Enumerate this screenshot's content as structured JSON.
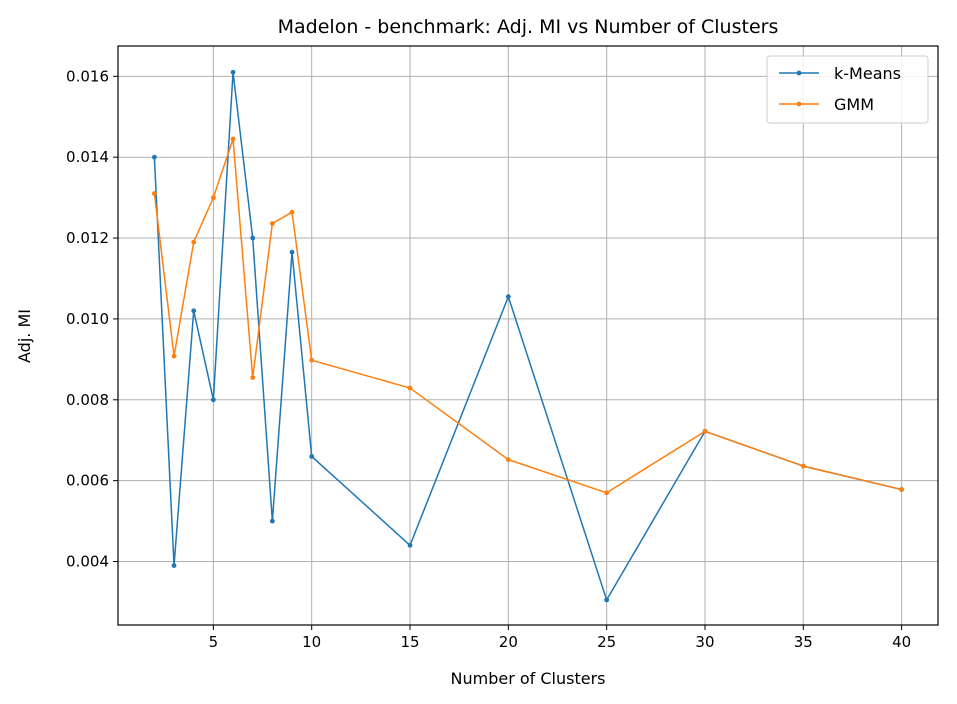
{
  "chart_data": {
    "type": "line",
    "title": "Madelon - benchmark: Adj. MI vs Number of Clusters",
    "xlabel": "Number of Clusters",
    "ylabel": "Adj. MI",
    "x": [
      2,
      3,
      4,
      5,
      6,
      7,
      8,
      9,
      10,
      15,
      20,
      25,
      30,
      35,
      40
    ],
    "xlim": [
      0.15,
      41.85
    ],
    "ylim": [
      0.00243,
      0.01675
    ],
    "xticks": [
      5,
      10,
      15,
      20,
      25,
      30,
      35,
      40
    ],
    "yticks": [
      0.004,
      0.006,
      0.008,
      0.01,
      0.012,
      0.014,
      0.016
    ],
    "ytick_labels": [
      "0.004",
      "0.006",
      "0.008",
      "0.010",
      "0.012",
      "0.014",
      "0.016"
    ],
    "grid": true,
    "legend_position": "top-right",
    "series": [
      {
        "name": "k-Means",
        "color": "#1f77b4",
        "values": [
          0.014,
          0.0039,
          0.0102,
          0.008,
          0.0161,
          0.012,
          0.005,
          0.01165,
          0.0066,
          0.0044,
          0.01055,
          0.00305,
          0.00722,
          0.00636,
          0.00578
        ]
      },
      {
        "name": "GMM",
        "color": "#ff7f0e",
        "values": [
          0.0131,
          0.00908,
          0.0119,
          0.013,
          0.01445,
          0.00855,
          0.01236,
          0.01264,
          0.00898,
          0.00829,
          0.00652,
          0.0057,
          0.00722,
          0.00636,
          0.00578
        ]
      }
    ]
  }
}
